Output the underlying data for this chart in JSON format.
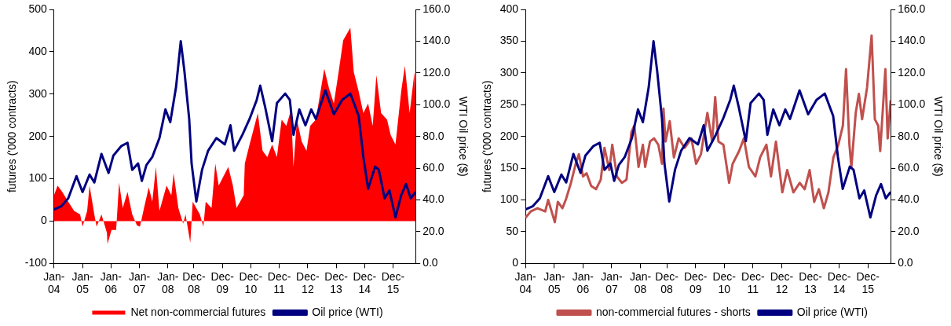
{
  "chart_data": [
    {
      "type": "area",
      "ylabel": "futures ('000 contracts)",
      "y2label": "WTI Oil price ($)",
      "legend": "bottom",
      "grid": false,
      "xlim": [
        "2004-01-01",
        "2016-09-15"
      ],
      "xticks": [
        {
          "value": "2004-01",
          "label": "Jan-04"
        },
        {
          "value": "2005-01",
          "label": "Jan-05"
        },
        {
          "value": "2006-01",
          "label": "Jan-06"
        },
        {
          "value": "2007-01",
          "label": "Jan-07"
        },
        {
          "value": "2008-01",
          "label": "Jan-08"
        },
        {
          "value": "2008-12",
          "label": "Dec-08"
        },
        {
          "value": "2009-12",
          "label": "Dec-09"
        },
        {
          "value": "2010-12",
          "label": "Dec-10"
        },
        {
          "value": "2011-12",
          "label": "Dec-11"
        },
        {
          "value": "2012-12",
          "label": "Dec-12"
        },
        {
          "value": "2013-12",
          "label": "Dec-13"
        },
        {
          "value": "2014-12",
          "label": "Dec-14"
        },
        {
          "value": "2015-12",
          "label": "Dec-15"
        }
      ],
      "ylim": [
        -100,
        500
      ],
      "yticks": [
        -100,
        0,
        100,
        200,
        300,
        400,
        500
      ],
      "y2lim": [
        0,
        160
      ],
      "y2ticks": [
        {
          "value": 0,
          "label": "0.0"
        },
        {
          "value": 20,
          "label": "20.0"
        },
        {
          "value": 40,
          "label": "40.0"
        },
        {
          "value": 60,
          "label": "60.0"
        },
        {
          "value": 80,
          "label": "80.0"
        },
        {
          "value": 100,
          "label": "100.0"
        },
        {
          "value": 120,
          "label": "120.0"
        },
        {
          "value": 140,
          "label": "140.0"
        },
        {
          "value": 160,
          "label": "160.0"
        }
      ],
      "series": [
        {
          "name": "Net non-commercial futures",
          "color": "#ff0000",
          "x": [
            "2004-01-01",
            "2004-02-15",
            "2004-04-15",
            "2004-07-01",
            "2004-09-15",
            "2004-12-01",
            "2005-01-01",
            "2005-03-01",
            "2005-04-01",
            "2005-06-01",
            "2005-07-01",
            "2005-09-01",
            "2005-11-10",
            "2005-11-17",
            "2006-01-08",
            "2006-03-08",
            "2006-04-15",
            "2006-06-01",
            "2006-08-01",
            "2006-10-01",
            "2006-12-01",
            "2007-01-08",
            "2007-03-01",
            "2007-05-01",
            "2007-06-15",
            "2007-08-01",
            "2007-09-15",
            "2007-12-15",
            "2008-02-15",
            "2008-03-15",
            "2008-05-15",
            "2008-07-15",
            "2008-08-15",
            "2008-10-15",
            "2008-11-15",
            "2009-02-15",
            "2009-04-01",
            "2009-05-01",
            "2009-07-15",
            "2009-09-01",
            "2009-10-15",
            "2010-02-15",
            "2010-04-15",
            "2010-06-01",
            "2010-09-01",
            "2010-09-15",
            "2010-11-15",
            "2011-03-01",
            "2011-05-01",
            "2011-07-01",
            "2011-09-01",
            "2011-11-01",
            "2012-01-01",
            "2012-03-01",
            "2012-05-01",
            "2012-06-01",
            "2012-07-15",
            "2012-09-15",
            "2012-11-15",
            "2013-01-01",
            "2013-03-15",
            "2013-07-01",
            "2013-09-01",
            "2013-11-01",
            "2014-01-01",
            "2014-03-01",
            "2014-06-01",
            "2014-07-15",
            "2014-09-15",
            "2014-11-15",
            "2015-01-15",
            "2015-03-15",
            "2015-05-01",
            "2015-07-01",
            "2015-09-15",
            "2015-11-01",
            "2016-01-01",
            "2016-03-15",
            "2016-05-01",
            "2016-07-01",
            "2016-09-01",
            "2016-09-15"
          ],
          "values": [
            61,
            84,
            69,
            46,
            24,
            16,
            -13,
            24,
            84,
            16,
            -13,
            16,
            -28,
            -54,
            -21,
            -21,
            91,
            31,
            69,
            16,
            -10,
            -13,
            31,
            80,
            46,
            128,
            24,
            84,
            61,
            113,
            31,
            -6,
            16,
            -51,
            46,
            16,
            -13,
            46,
            31,
            136,
            84,
            128,
            84,
            31,
            61,
            136,
            181,
            255,
            166,
            151,
            181,
            151,
            240,
            225,
            263,
            128,
            240,
            188,
            166,
            225,
            240,
            360,
            313,
            278,
            352,
            427,
            457,
            352,
            307,
            255,
            278,
            225,
            345,
            255,
            240,
            203,
            181,
            307,
            367,
            255,
            352,
            293
          ]
        },
        {
          "name": "Oil price (WTI)",
          "type": "line",
          "axis": "y2",
          "color": "#000080",
          "x": [
            "2004-01-01",
            "2004-04-01",
            "2004-07-01",
            "2004-10-15",
            "2005-01-01",
            "2005-04-01",
            "2005-06-01",
            "2005-09-01",
            "2005-12-01",
            "2006-02-01",
            "2006-05-15",
            "2006-08-01",
            "2006-10-01",
            "2006-12-15",
            "2007-02-01",
            "2007-04-01",
            "2007-06-15",
            "2007-09-15",
            "2007-12-01",
            "2008-02-01",
            "2008-04-15",
            "2008-06-15",
            "2008-08-01",
            "2008-10-01",
            "2008-11-01",
            "2009-01-01",
            "2009-03-15",
            "2009-06-01",
            "2009-09-15",
            "2010-01-01",
            "2010-03-15",
            "2010-05-01",
            "2010-08-15",
            "2010-11-15",
            "2011-02-15",
            "2011-04-01",
            "2011-06-01",
            "2011-09-01",
            "2011-11-01",
            "2012-02-15",
            "2012-04-15",
            "2012-06-01",
            "2012-08-15",
            "2012-11-01",
            "2013-01-15",
            "2013-03-15",
            "2013-07-15",
            "2013-11-01",
            "2014-02-15",
            "2014-06-01",
            "2014-09-15",
            "2014-11-15",
            "2015-01-15",
            "2015-04-15",
            "2015-06-01",
            "2015-08-15",
            "2015-10-15",
            "2016-01-01",
            "2016-03-15",
            "2016-05-15",
            "2016-07-15",
            "2016-09-15"
          ],
          "values": [
            34,
            36,
            41,
            55,
            45,
            56,
            51,
            69,
            57,
            68,
            74,
            76,
            59,
            63,
            52,
            62,
            67,
            79,
            97,
            89,
            111,
            140,
            121,
            91,
            63,
            39,
            59,
            71,
            79,
            75,
            87,
            71,
            81,
            91,
            103,
            112,
            99,
            77,
            101,
            107,
            103,
            81,
            97,
            87,
            97,
            91,
            109,
            94,
            103,
            107,
            93,
            67,
            47,
            61,
            59,
            41,
            46,
            29,
            43,
            50,
            41,
            45
          ]
        }
      ]
    },
    {
      "type": "line",
      "ylabel": "futures ('000 contracts)",
      "y2label": "WTI Oil price ($)",
      "legend": "bottom",
      "grid": false,
      "xlim": [
        "2004-01-01",
        "2016-09-15"
      ],
      "xticks": [
        {
          "value": "2004-01",
          "label": "Jan-04"
        },
        {
          "value": "2005-01",
          "label": "Jan-05"
        },
        {
          "value": "2006-01",
          "label": "Jan-06"
        },
        {
          "value": "2007-01",
          "label": "Jan-07"
        },
        {
          "value": "2008-01",
          "label": "Jan-08"
        },
        {
          "value": "2008-12",
          "label": "Dec-08"
        },
        {
          "value": "2009-12",
          "label": "Dec-09"
        },
        {
          "value": "2010-12",
          "label": "Dec-10"
        },
        {
          "value": "2011-12",
          "label": "Dec-11"
        },
        {
          "value": "2012-12",
          "label": "Dec-12"
        },
        {
          "value": "2013-12",
          "label": "Dec-13"
        },
        {
          "value": "2014-12",
          "label": "Dec-14"
        },
        {
          "value": "2015-12",
          "label": "Dec-15"
        }
      ],
      "ylim": [
        0,
        400
      ],
      "yticks": [
        0,
        50,
        100,
        150,
        200,
        250,
        300,
        350,
        400
      ],
      "y2lim": [
        0,
        160
      ],
      "y2ticks": [
        {
          "value": 0,
          "label": "0.0"
        },
        {
          "value": 20,
          "label": "20.0"
        },
        {
          "value": 40,
          "label": "40.0"
        },
        {
          "value": 60,
          "label": "60.0"
        },
        {
          "value": 80,
          "label": "80.0"
        },
        {
          "value": 100,
          "label": "100.0"
        },
        {
          "value": 120,
          "label": "120.0"
        },
        {
          "value": 140,
          "label": "140.0"
        },
        {
          "value": 160,
          "label": "160.0"
        }
      ],
      "series": [
        {
          "name": "non-commercial futures - shorts",
          "color": "#c0504d",
          "x": [
            "2004-01-01",
            "2004-03-08",
            "2004-06-01",
            "2004-09-08",
            "2004-10-15",
            "2005-01-08",
            "2005-02-15",
            "2005-04-15",
            "2005-06-01",
            "2005-08-01",
            "2005-10-01",
            "2005-11-10",
            "2006-01-01",
            "2006-02-15",
            "2006-04-15",
            "2006-06-15",
            "2006-08-15",
            "2006-10-01",
            "2006-12-01",
            "2007-01-08",
            "2007-03-08",
            "2007-05-10",
            "2007-07-08",
            "2007-09-08",
            "2007-10-15",
            "2007-12-08",
            "2008-02-01",
            "2008-03-01",
            "2008-05-01",
            "2008-06-22",
            "2008-08-15",
            "2008-10-01",
            "2008-10-20",
            "2008-11-15",
            "2009-01-07",
            "2009-03-01",
            "2009-05-01",
            "2009-07-15",
            "2009-10-10",
            "2009-12-08",
            "2010-02-08",
            "2010-05-01",
            "2010-07-01",
            "2010-08-08",
            "2010-09-18",
            "2010-11-20",
            "2011-02-01",
            "2011-03-18",
            "2011-06-08",
            "2011-08-08",
            "2011-10-10",
            "2012-01-01",
            "2012-03-01",
            "2012-05-20",
            "2012-07-17",
            "2012-09-18",
            "2012-12-08",
            "2013-02-08",
            "2013-04-28",
            "2013-07-17",
            "2013-09-18",
            "2013-11-20",
            "2014-01-17",
            "2014-03-18",
            "2014-05-20",
            "2014-07-17",
            "2014-09-18",
            "2014-11-20",
            "2015-01-17",
            "2015-02-26",
            "2015-04-10",
            "2015-05-05",
            "2015-06-29",
            "2015-08-08",
            "2015-09-18",
            "2015-11-20",
            "2016-01-17",
            "2016-02-27",
            "2016-04-10",
            "2016-05-05",
            "2016-07-10",
            "2016-08-08",
            "2016-09-15"
          ],
          "values": [
            72,
            82,
            87,
            82,
            100,
            65,
            97,
            87,
            102,
            127,
            157,
            172,
            137,
            142,
            122,
            117,
            132,
            182,
            147,
            187,
            137,
            127,
            132,
            207,
            217,
            152,
            187,
            152,
            192,
            197,
            187,
            157,
            244,
            192,
            224,
            167,
            197,
            182,
            197,
            157,
            172,
            237,
            192,
            262,
            192,
            187,
            127,
            157,
            177,
            197,
            152,
            137,
            167,
            187,
            137,
            192,
            112,
            147,
            112,
            127,
            117,
            147,
            97,
            117,
            87,
            112,
            167,
            187,
            217,
            306,
            187,
            152,
            237,
            267,
            227,
            277,
            359,
            227,
            217,
            177,
            306,
            197,
            257
          ]
        },
        {
          "name": "Oil price (WTI)",
          "type": "line",
          "axis": "y2",
          "color": "#000080",
          "x": [
            "2004-01-01",
            "2004-04-01",
            "2004-07-01",
            "2004-10-15",
            "2005-01-01",
            "2005-04-01",
            "2005-06-01",
            "2005-09-01",
            "2005-12-01",
            "2006-02-01",
            "2006-05-15",
            "2006-08-01",
            "2006-10-01",
            "2006-12-15",
            "2007-02-01",
            "2007-04-01",
            "2007-06-15",
            "2007-09-15",
            "2007-12-01",
            "2008-02-01",
            "2008-04-15",
            "2008-06-15",
            "2008-08-01",
            "2008-10-01",
            "2008-11-01",
            "2009-01-01",
            "2009-03-15",
            "2009-06-01",
            "2009-09-15",
            "2010-01-01",
            "2010-03-15",
            "2010-05-01",
            "2010-08-15",
            "2010-11-15",
            "2011-02-15",
            "2011-04-01",
            "2011-06-01",
            "2011-09-01",
            "2011-11-01",
            "2012-02-15",
            "2012-04-15",
            "2012-06-01",
            "2012-08-15",
            "2012-11-01",
            "2013-01-15",
            "2013-03-15",
            "2013-07-15",
            "2013-11-01",
            "2014-02-15",
            "2014-06-01",
            "2014-09-15",
            "2014-11-15",
            "2015-01-15",
            "2015-04-15",
            "2015-06-01",
            "2015-08-15",
            "2015-10-15",
            "2016-01-01",
            "2016-03-15",
            "2016-05-15",
            "2016-07-15",
            "2016-09-15"
          ],
          "values": [
            34,
            36,
            41,
            55,
            45,
            56,
            51,
            69,
            57,
            68,
            74,
            76,
            59,
            63,
            52,
            62,
            67,
            79,
            97,
            89,
            111,
            140,
            121,
            91,
            63,
            39,
            59,
            71,
            79,
            75,
            87,
            71,
            81,
            91,
            103,
            112,
            99,
            77,
            101,
            107,
            103,
            81,
            97,
            87,
            97,
            91,
            109,
            94,
            103,
            107,
            93,
            67,
            47,
            61,
            59,
            41,
            46,
            29,
            43,
            50,
            41,
            45
          ]
        }
      ]
    }
  ]
}
